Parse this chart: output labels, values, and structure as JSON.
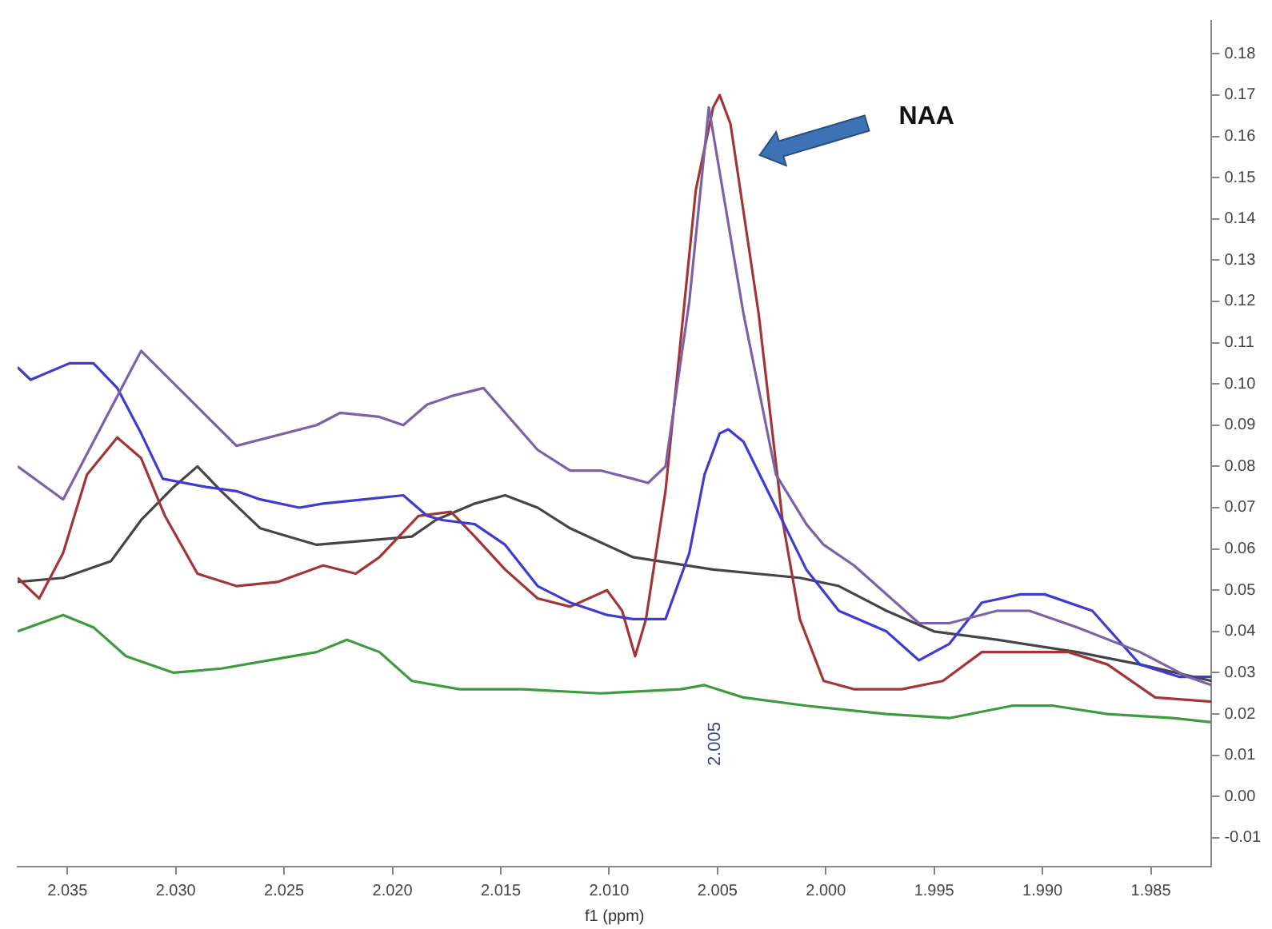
{
  "chart_data": {
    "type": "line",
    "xlabel": "f1 (ppm)",
    "xlim": [
      2.0373,
      1.9822
    ],
    "ylim": [
      -0.017,
      0.188
    ],
    "xticks": [
      2.035,
      {
        "value": 2.03,
        "label": "2.030"
      },
      2.025,
      {
        "value": 2.02,
        "label": "2.020"
      },
      2.015,
      {
        "value": 2.01,
        "label": "2.010"
      },
      2.005,
      {
        "value": 2,
        "label": "2.000"
      },
      1.995,
      {
        "value": 1.99,
        "label": "1.990"
      },
      1.985
    ],
    "yticks": [
      -0.01,
      {
        "value": 0,
        "label": "0.00"
      },
      0.01,
      0.02,
      0.03,
      0.04,
      0.05,
      0.06,
      0.07,
      0.08,
      0.09,
      {
        "value": 0.1,
        "label": "0.10"
      },
      0.11,
      0.12,
      0.13,
      0.14,
      0.15,
      0.16,
      0.17,
      0.18
    ],
    "grid": false,
    "legend": false,
    "marker": "none",
    "line_style": "solid",
    "annotations": [
      "NAA",
      "2.005"
    ],
    "series": [
      {
        "color": "#7b62a8",
        "x": [
          2.0373,
          2.0352,
          2.0316,
          2.0272,
          2.0235,
          2.0224,
          2.0206,
          2.0195,
          2.0184,
          2.0173,
          2.0158,
          2.0148,
          2.0133,
          2.0118,
          2.0104,
          2.0089,
          2.0082,
          2.0074,
          2.0063,
          2.0054,
          2.0038,
          2.0023,
          2.0009,
          2.0001,
          1.9987,
          1.9957,
          1.9943,
          1.9921,
          1.9906,
          1.9884,
          1.9855,
          1.9833,
          1.9822
        ],
        "values": [
          0.08,
          0.072,
          0.108,
          0.085,
          0.09,
          0.093,
          0.092,
          0.09,
          0.095,
          0.097,
          0.099,
          0.093,
          0.084,
          0.079,
          0.079,
          0.077,
          0.076,
          0.08,
          0.12,
          0.167,
          0.117,
          0.078,
          0.066,
          0.061,
          0.056,
          0.042,
          0.042,
          0.045,
          0.045,
          0.041,
          0.035,
          0.029,
          0.027
        ]
      },
      {
        "color": "#3c3ccf",
        "x": [
          2.0373,
          2.0367,
          2.0349,
          2.0338,
          2.0327,
          2.0316,
          2.0306,
          2.0286,
          2.0272,
          2.0261,
          2.0243,
          2.0232,
          2.0213,
          2.0195,
          2.0184,
          2.0177,
          2.0162,
          2.0148,
          2.0133,
          2.0118,
          2.0101,
          2.0089,
          2.0074,
          2.0063,
          2.0056,
          2.0049,
          2.0045,
          2.0038,
          2.0023,
          2.0009,
          1.9994,
          1.9972,
          1.9957,
          1.9943,
          1.9928,
          1.991,
          1.9899,
          1.9877,
          1.9855,
          1.9837,
          1.9822
        ],
        "values": [
          0.104,
          0.101,
          0.105,
          0.105,
          0.099,
          0.088,
          0.077,
          0.075,
          0.074,
          0.072,
          0.07,
          0.071,
          0.072,
          0.073,
          0.068,
          0.067,
          0.066,
          0.061,
          0.051,
          0.047,
          0.044,
          0.043,
          0.043,
          0.059,
          0.078,
          0.088,
          0.089,
          0.086,
          0.07,
          0.055,
          0.045,
          0.04,
          0.033,
          0.037,
          0.047,
          0.049,
          0.049,
          0.045,
          0.032,
          0.029,
          0.029
        ]
      },
      {
        "color": "#a23535",
        "x": [
          2.0373,
          2.0363,
          2.0352,
          2.0341,
          2.0327,
          2.0316,
          2.0305,
          2.029,
          2.0272,
          2.0253,
          2.0232,
          2.0217,
          2.0206,
          2.0188,
          2.0173,
          2.0162,
          2.0148,
          2.0133,
          2.0118,
          2.0101,
          2.0094,
          2.0088,
          2.0083,
          2.0074,
          2.006,
          2.0052,
          2.0049,
          2.0044,
          2.0031,
          2.002,
          2.0012,
          2.0001,
          1.9987,
          1.9965,
          1.9946,
          1.9928,
          1.9906,
          1.9888,
          1.987,
          1.9848,
          1.9822
        ],
        "values": [
          0.053,
          0.048,
          0.059,
          0.078,
          0.087,
          0.082,
          0.068,
          0.054,
          0.051,
          0.052,
          0.056,
          0.054,
          0.058,
          0.068,
          0.069,
          0.063,
          0.055,
          0.048,
          0.046,
          0.05,
          0.045,
          0.034,
          0.043,
          0.074,
          0.147,
          0.167,
          0.17,
          0.163,
          0.117,
          0.067,
          0.043,
          0.028,
          0.026,
          0.026,
          0.028,
          0.035,
          0.035,
          0.035,
          0.032,
          0.024,
          0.023
        ]
      },
      {
        "color": "#454545",
        "x": [
          2.0373,
          2.0352,
          2.033,
          2.0316,
          2.0301,
          2.029,
          2.0279,
          2.0261,
          2.0235,
          2.0213,
          2.0191,
          2.018,
          2.0162,
          2.0148,
          2.0133,
          2.0118,
          2.0089,
          2.0052,
          2.0012,
          1.9994,
          1.9972,
          1.995,
          1.9921,
          1.9884,
          1.9855,
          1.9822
        ],
        "values": [
          0.052,
          0.053,
          0.057,
          0.067,
          0.075,
          0.08,
          0.074,
          0.065,
          0.061,
          0.062,
          0.063,
          0.067,
          0.071,
          0.073,
          0.07,
          0.065,
          0.058,
          0.055,
          0.053,
          0.051,
          0.045,
          0.04,
          0.038,
          0.035,
          0.032,
          0.028
        ]
      },
      {
        "color": "#3e9a3e",
        "x": [
          2.0373,
          2.0352,
          2.0338,
          2.0323,
          2.0301,
          2.0279,
          2.0257,
          2.0235,
          2.0221,
          2.0206,
          2.0191,
          2.0169,
          2.014,
          2.0104,
          2.0067,
          2.0056,
          2.0038,
          2.0009,
          1.9972,
          1.9943,
          1.9914,
          1.9895,
          1.987,
          1.984,
          1.9822
        ],
        "values": [
          0.04,
          0.044,
          0.041,
          0.034,
          0.03,
          0.031,
          0.033,
          0.035,
          0.038,
          0.035,
          0.028,
          0.026,
          0.026,
          0.025,
          0.026,
          0.027,
          0.024,
          0.022,
          0.02,
          0.019,
          0.022,
          0.022,
          0.02,
          0.019,
          0.018
        ]
      }
    ]
  }
}
